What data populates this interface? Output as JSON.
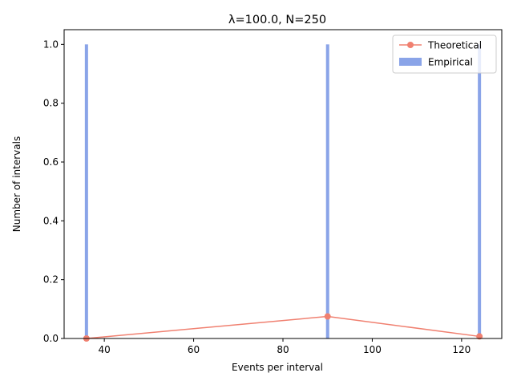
{
  "chart_data": {
    "type": "bar",
    "title": "λ=100.0, N=250",
    "xlabel": "Events per interval",
    "ylabel": "Number of intervals",
    "xlim": [
      31,
      129
    ],
    "ylim": [
      0,
      1.05
    ],
    "xticks": [
      40,
      60,
      80,
      100,
      120
    ],
    "xtick_labels": [
      "40",
      "60",
      "80",
      100,
      "120"
    ],
    "yticks": [
      0.0,
      0.2,
      0.4,
      0.6,
      0.8,
      1.0
    ],
    "ytick_labels": [
      "0.0",
      "0.2",
      "0.4",
      "0.6",
      "0.8",
      "1.0"
    ],
    "grid": false,
    "legend_position": "top-right",
    "series": [
      {
        "name": "Theoretical",
        "kind": "line",
        "color": "#f08070",
        "x": [
          36,
          90,
          124
        ],
        "y": [
          0.0,
          0.075,
          0.007
        ]
      },
      {
        "name": "Empirical",
        "kind": "bar",
        "color": "#8aa4e8",
        "x": [
          36,
          90,
          124
        ],
        "y": [
          1.0,
          1.0,
          1.0
        ]
      }
    ]
  }
}
